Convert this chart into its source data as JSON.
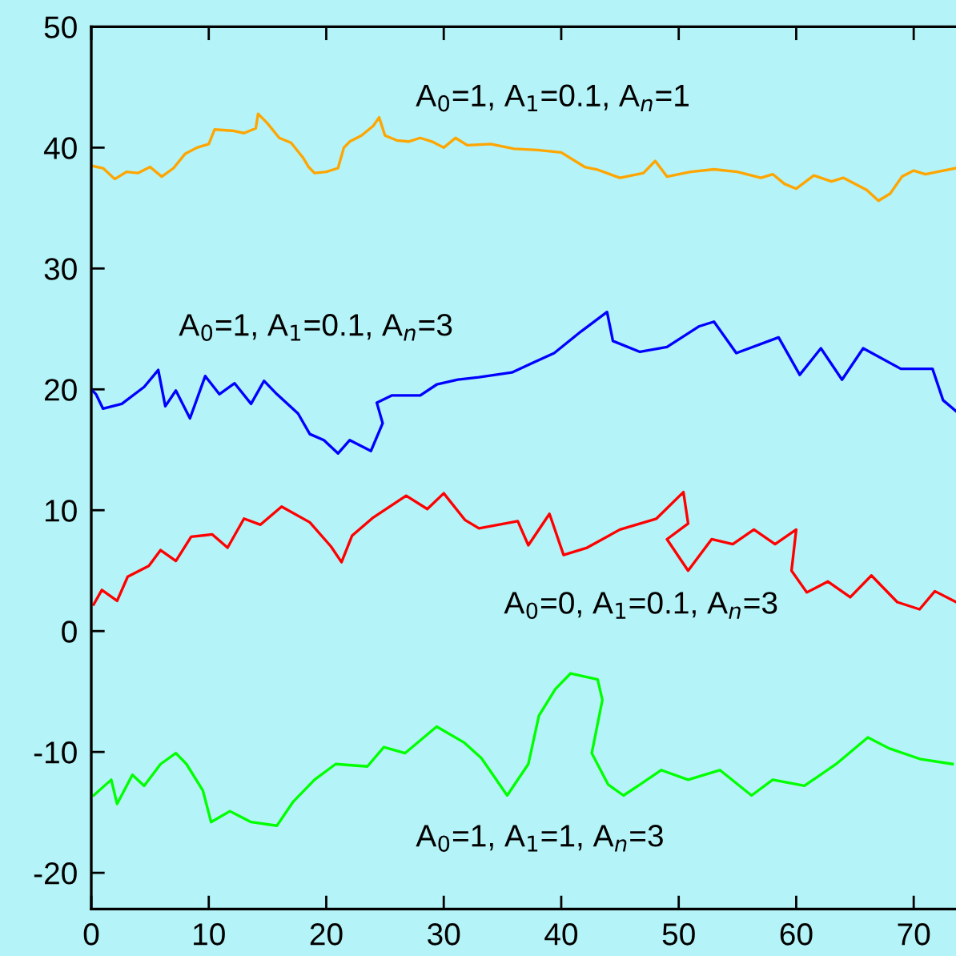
{
  "chart_data": {
    "type": "line",
    "xlim": [
      0,
      73.6
    ],
    "ylim": [
      -23,
      50
    ],
    "xticks": [
      0,
      10,
      20,
      30,
      40,
      50,
      60,
      70
    ],
    "yticks": [
      -20,
      -10,
      0,
      10,
      20,
      30,
      40,
      50
    ],
    "grid": false,
    "legend": false,
    "marker": "none",
    "line_style": "solid",
    "series": [
      {
        "color": "#ffa500",
        "x": [
          0,
          1,
          2,
          3,
          4,
          5,
          6,
          7,
          8,
          9,
          10,
          10.5,
          12,
          13,
          14,
          14.2,
          15,
          16,
          17,
          18,
          18.5,
          19,
          20,
          21,
          21.5,
          22,
          23,
          24,
          24.5,
          25,
          26,
          27,
          28,
          29,
          30,
          31,
          32,
          34,
          36,
          38,
          40,
          42,
          43,
          45,
          47,
          48,
          49,
          51,
          53,
          55,
          57,
          58,
          59,
          60,
          61.5,
          63,
          64,
          66,
          67,
          68,
          69,
          70,
          71,
          72,
          73.6
        ],
        "values": [
          38.5,
          38.3,
          37.4,
          38,
          37.9,
          38.4,
          37.6,
          38.3,
          39.5,
          40,
          40.3,
          41.5,
          41.4,
          41.2,
          41.6,
          42.8,
          42,
          40.8,
          40.4,
          39.2,
          38.4,
          37.9,
          38,
          38.3,
          40,
          40.5,
          41,
          41.8,
          42.5,
          41,
          40.6,
          40.5,
          40.8,
          40.5,
          40,
          40.8,
          40.2,
          40.3,
          39.9,
          39.8,
          39.6,
          38.4,
          38.2,
          37.5,
          37.9,
          38.9,
          37.6,
          38,
          38.2,
          38,
          37.5,
          37.8,
          37,
          36.6,
          37.7,
          37.2,
          37.5,
          36.5,
          35.6,
          36.2,
          37.6,
          38.1,
          37.8,
          38,
          38.3
        ]
      },
      {
        "color": "#0000ff",
        "x": [
          0,
          0.4,
          1,
          2.6,
          4.5,
          5.7,
          6.3,
          7.2,
          8.4,
          9.7,
          10.9,
          12.2,
          13.6,
          14.7,
          15.8,
          17.6,
          18.6,
          19.8,
          21,
          22,
          23.8,
          24.8,
          24.3,
          25.6,
          28,
          29.4,
          31.2,
          33,
          35.8,
          37.6,
          39.4,
          41.7,
          43.9,
          44.4,
          46.7,
          49,
          51.7,
          53,
          54.9,
          58.5,
          60.3,
          62.1,
          63.9,
          65.7,
          68.9,
          71.6,
          72.5,
          73.6
        ],
        "values": [
          20,
          19.6,
          18.4,
          18.8,
          20.2,
          21.6,
          18.6,
          19.9,
          17.6,
          21.1,
          19.6,
          20.5,
          18.8,
          20.7,
          19.6,
          18,
          16.3,
          15.8,
          14.7,
          15.8,
          14.9,
          17.2,
          18.9,
          19.5,
          19.5,
          20.4,
          20.8,
          21,
          21.4,
          22.2,
          23,
          24.8,
          26.4,
          24,
          23.1,
          23.5,
          25.2,
          25.6,
          23,
          24.3,
          21.2,
          23.4,
          20.8,
          23.4,
          21.7,
          21.7,
          19.1,
          18.2
        ]
      },
      {
        "color": "#ff0000",
        "x": [
          0.2,
          0.9,
          2.2,
          3.1,
          4.9,
          5.9,
          7.2,
          8.5,
          10.3,
          11.6,
          13,
          14.4,
          16.2,
          18.6,
          20.4,
          21.3,
          22.2,
          24,
          26.8,
          28.6,
          30,
          31.8,
          33,
          36.3,
          37.2,
          39,
          40.2,
          42.2,
          45,
          48.1,
          50.4,
          50.8,
          49,
          50.8,
          52.8,
          54.6,
          56.4,
          58.2,
          60,
          59.6,
          60.9,
          62.7,
          64.6,
          66.4,
          68.6,
          70.5,
          71.8,
          73.6
        ],
        "values": [
          2.2,
          3.4,
          2.5,
          4.5,
          5.4,
          6.7,
          5.8,
          7.8,
          8,
          6.9,
          9.3,
          8.8,
          10.3,
          9,
          7,
          5.7,
          7.9,
          9.4,
          11.2,
          10.1,
          11.4,
          9.2,
          8.5,
          9.1,
          7.1,
          9.7,
          6.3,
          6.9,
          8.4,
          9.3,
          11.5,
          8.9,
          7.6,
          5,
          7.6,
          7.2,
          8.4,
          7.2,
          8.4,
          5,
          3.2,
          4.1,
          2.8,
          4.6,
          2.4,
          1.8,
          3.3,
          2.4
        ]
      },
      {
        "color": "#00ff00",
        "x": [
          0.2,
          1.7,
          2.2,
          3.5,
          4.5,
          5.9,
          7.2,
          8.1,
          9.5,
          10.2,
          11.8,
          13.6,
          15.8,
          17.2,
          19,
          20.8,
          23.5,
          24.9,
          26.7,
          29.4,
          31.7,
          33.2,
          35.4,
          37.2,
          38.1,
          39.5,
          40.8,
          43.1,
          43.5,
          42.6,
          44,
          45.3,
          46.7,
          48.5,
          50.8,
          53.5,
          56.2,
          58,
          60.7,
          63.4,
          66.1,
          67.9,
          70.6,
          73.3
        ],
        "values": [
          -13.6,
          -12.3,
          -14.3,
          -11.9,
          -12.8,
          -11,
          -10.1,
          -11,
          -13.2,
          -15.8,
          -14.9,
          -15.8,
          -16.1,
          -14.1,
          -12.3,
          -11,
          -11.2,
          -9.6,
          -10.1,
          -7.9,
          -9.2,
          -10.5,
          -13.6,
          -11,
          -7,
          -4.8,
          -3.5,
          -4,
          -5.7,
          -10.1,
          -12.7,
          -13.6,
          -12.7,
          -11.5,
          -12.3,
          -11.5,
          -13.6,
          -12.3,
          -12.8,
          -11,
          -8.8,
          -9.7,
          -10.6,
          -11
        ]
      }
    ],
    "annotations": [
      "A$_{0}$=1, A$_{1}$=0.1, A$_{n}$=1",
      "A$_{0}$=1, A$_{1}$=0.1, A$_{n}$=3",
      "A$_{0}$=0, A$_{1}$=0.1, A$_{n}$=3",
      "A$_{0}$=1, A$_{1}$=1, A$_{n}$=3"
    ]
  }
}
